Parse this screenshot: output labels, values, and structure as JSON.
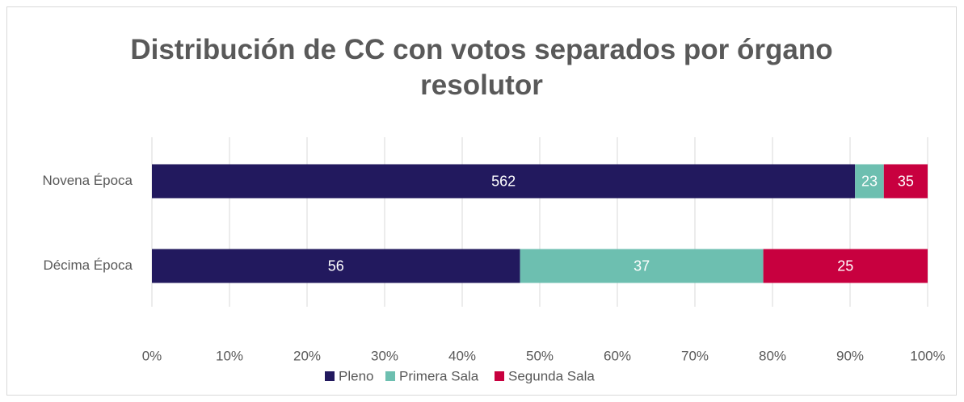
{
  "chart_data": {
    "type": "bar",
    "orientation": "horizontal",
    "stacking": "percent",
    "title": "Distribución de CC con votos separados por órgano resolutor",
    "categories": [
      "Novena Época",
      "Décima Época"
    ],
    "series": [
      {
        "name": "Pleno",
        "color": "#22195e",
        "values": [
          562,
          56
        ]
      },
      {
        "name": "Primera Sala",
        "color": "#6dbfb0",
        "values": [
          23,
          37
        ]
      },
      {
        "name": "Segunda Sala",
        "color": "#c8003f",
        "values": [
          35,
          25
        ]
      }
    ],
    "xlim": [
      0,
      100
    ],
    "xticks": [
      {
        "value": 0,
        "label": "0%"
      },
      {
        "value": 10,
        "label": "10%"
      },
      {
        "value": 20,
        "label": "20%"
      },
      {
        "value": 30,
        "label": "30%"
      },
      {
        "value": 40,
        "label": "40%"
      },
      {
        "value": 50,
        "label": "50%"
      },
      {
        "value": 60,
        "label": "60%"
      },
      {
        "value": 70,
        "label": "70%"
      },
      {
        "value": 80,
        "label": "80%"
      },
      {
        "value": 90,
        "label": "90%"
      },
      {
        "value": 100,
        "label": "100%"
      }
    ],
    "grid": true,
    "legend": "bottom"
  }
}
